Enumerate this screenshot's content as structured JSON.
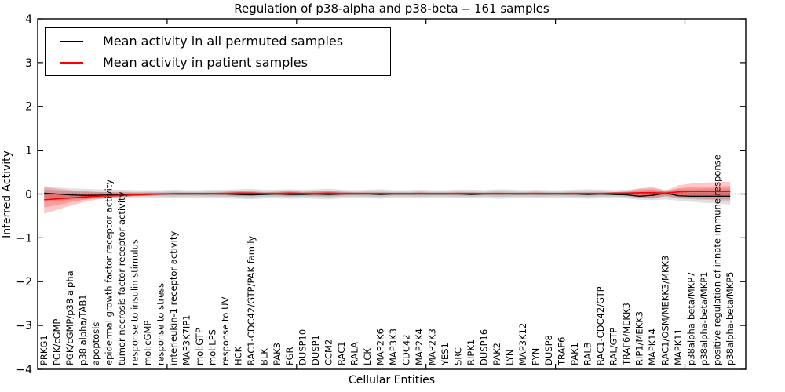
{
  "title": "Regulation of p38-alpha and p38-beta -- 161 samples",
  "ylabel": "Inferred Activity",
  "xlabel": "Cellular Entities",
  "legend": {
    "items": [
      {
        "label": "Mean activity in all permuted samples",
        "color": "#000000"
      },
      {
        "label": "Mean activity in patient samples",
        "color": "#ff0000"
      }
    ]
  },
  "chart_data": {
    "type": "line",
    "title": "Regulation of p38-alpha and p38-beta -- 161 samples",
    "xlabel": "Cellular Entities",
    "ylabel": "Inferred Activity",
    "ylim": [
      -4,
      4
    ],
    "xlim": [
      0,
      54.7
    ],
    "yticks": [
      -4,
      -3,
      -2,
      -1,
      0,
      1,
      2,
      3,
      4
    ],
    "ytick_labels": [
      "−4",
      "−3",
      "−2",
      "−1",
      "0",
      "1",
      "2",
      "3",
      "4"
    ],
    "xticks": [
      10,
      20,
      30,
      40,
      50
    ],
    "grid": false,
    "legend_position": "upper left",
    "zero_line": 0,
    "inner_band_fraction": 0.55,
    "categories": [
      "PRKG1",
      "PGK/cGMP",
      "PGK/cGMP/p38 alpha",
      "p38 alpha/TAB1",
      "apoptosis",
      "epidermal growth factor receptor activity",
      "tumor necrosis factor receptor activity",
      "response to insulin stimulus",
      "mol:cGMP",
      "response to stress",
      "interleukin-1 receptor activity",
      "MAP3K7IP1",
      "mol:GTP",
      "mol:LPS",
      "response to UV",
      "HCK",
      "RAC1-CDC42/GTP/PAK family",
      "BLK",
      "PAK3",
      "FGR",
      "DUSP10",
      "DUSP1",
      "CCM2",
      "RAC1",
      "RALA",
      "LCK",
      "MAP2K6",
      "MAP3K3",
      "CDC42",
      "MAP2K4",
      "MAP2K3",
      "YES1",
      "SRC",
      "RIPK1",
      "DUSP16",
      "PAK2",
      "LYN",
      "MAP3K12",
      "FYN",
      "DUSP8",
      "TRAF6",
      "PAK1",
      "RALB",
      "RAC1-CDC42/GTP",
      "RAL/GTP",
      "TRAF6/MEKK3",
      "RIP1/MEKK3",
      "MAPK14",
      "RAC1/OSM/MEKK3/MKK3",
      "MAPK11",
      "p38alpha-beta/MKP7",
      "p38alpha-beta/MKP1",
      "positive regulation of innate immune response",
      "p38alpha-beta/MKP5"
    ],
    "series": [
      {
        "name": "Mean activity in all permuted samples",
        "color": "#000000",
        "values": [
          0.02,
          0.0,
          -0.02,
          -0.03,
          -0.03,
          -0.02,
          -0.01,
          -0.01,
          0.0,
          0.0,
          0.0,
          0.0,
          0.0,
          0.0,
          0.0,
          -0.01,
          -0.02,
          -0.01,
          0.0,
          -0.01,
          -0.01,
          0.0,
          -0.01,
          0.0,
          0.0,
          0.0,
          -0.01,
          0.0,
          0.0,
          0.0,
          0.0,
          0.0,
          0.0,
          -0.01,
          0.0,
          0.0,
          0.0,
          0.0,
          0.0,
          0.0,
          0.0,
          0.0,
          -0.01,
          0.0,
          -0.01,
          -0.02,
          -0.05,
          -0.03,
          0.02,
          -0.04,
          -0.05,
          -0.05,
          -0.05,
          -0.05
        ]
      },
      {
        "name": "Mean activity in patient samples",
        "color": "#ff0000",
        "values": [
          -0.13,
          -0.11,
          -0.09,
          -0.07,
          -0.05,
          -0.04,
          -0.03,
          -0.02,
          -0.01,
          0.0,
          0.01,
          0.01,
          0.01,
          0.01,
          0.01,
          0.02,
          0.02,
          0.01,
          0.01,
          0.02,
          0.01,
          0.01,
          0.02,
          0.01,
          0.01,
          0.01,
          0.01,
          0.01,
          0.01,
          0.01,
          0.01,
          0.01,
          0.01,
          0.01,
          0.01,
          0.01,
          0.01,
          0.01,
          0.01,
          0.01,
          0.01,
          0.01,
          0.01,
          0.01,
          0.02,
          0.02,
          0.03,
          0.03,
          0.02,
          0.05,
          0.06,
          0.06,
          0.06,
          0.06
        ]
      }
    ],
    "bands": [
      {
        "name": "permuted-confidence-band",
        "color": "#000000",
        "opacity": 0.12,
        "upper": [
          0.18,
          0.15,
          0.13,
          0.12,
          0.11,
          0.1,
          0.1,
          0.09,
          0.09,
          0.09,
          0.1,
          0.09,
          0.09,
          0.1,
          0.1,
          0.11,
          0.12,
          0.1,
          0.1,
          0.11,
          0.1,
          0.11,
          0.12,
          0.1,
          0.09,
          0.1,
          0.11,
          0.09,
          0.09,
          0.1,
          0.09,
          0.09,
          0.1,
          0.1,
          0.09,
          0.11,
          0.1,
          0.09,
          0.1,
          0.09,
          0.09,
          0.1,
          0.11,
          0.1,
          0.09,
          0.1,
          0.12,
          0.13,
          0.1,
          0.11,
          0.11,
          0.12,
          0.12,
          0.12
        ],
        "lower": [
          -0.18,
          -0.15,
          -0.13,
          -0.12,
          -0.11,
          -0.1,
          -0.1,
          -0.09,
          -0.09,
          -0.09,
          -0.1,
          -0.09,
          -0.09,
          -0.1,
          -0.1,
          -0.11,
          -0.12,
          -0.1,
          -0.1,
          -0.11,
          -0.1,
          -0.11,
          -0.12,
          -0.1,
          -0.09,
          -0.1,
          -0.11,
          -0.09,
          -0.09,
          -0.1,
          -0.09,
          -0.09,
          -0.1,
          -0.1,
          -0.09,
          -0.11,
          -0.1,
          -0.09,
          -0.1,
          -0.09,
          -0.09,
          -0.1,
          -0.11,
          -0.1,
          -0.09,
          -0.1,
          -0.13,
          -0.14,
          -0.12,
          -0.15,
          -0.18,
          -0.2,
          -0.22,
          -0.24
        ]
      },
      {
        "name": "patient-confidence-band",
        "color": "#ff0000",
        "opacity": 0.22,
        "upper": [
          0.16,
          0.12,
          0.09,
          0.07,
          0.05,
          0.04,
          0.04,
          0.03,
          0.03,
          0.03,
          0.03,
          0.03,
          0.03,
          0.03,
          0.05,
          0.08,
          0.07,
          0.04,
          0.05,
          0.08,
          0.05,
          0.06,
          0.08,
          0.05,
          0.04,
          0.04,
          0.04,
          0.03,
          0.03,
          0.04,
          0.03,
          0.03,
          0.04,
          0.04,
          0.03,
          0.04,
          0.03,
          0.03,
          0.04,
          0.03,
          0.03,
          0.04,
          0.04,
          0.04,
          0.04,
          0.06,
          0.13,
          0.16,
          0.07,
          0.2,
          0.24,
          0.26,
          0.27,
          0.28
        ],
        "lower": [
          -0.45,
          -0.36,
          -0.27,
          -0.19,
          -0.13,
          -0.09,
          -0.07,
          -0.05,
          -0.04,
          -0.03,
          -0.02,
          -0.02,
          -0.02,
          -0.02,
          -0.03,
          -0.05,
          -0.04,
          -0.02,
          -0.03,
          -0.05,
          -0.03,
          -0.04,
          -0.05,
          -0.03,
          -0.02,
          -0.02,
          -0.02,
          -0.02,
          -0.02,
          -0.02,
          -0.02,
          -0.02,
          -0.02,
          -0.02,
          -0.02,
          -0.02,
          -0.02,
          -0.02,
          -0.02,
          -0.02,
          -0.02,
          -0.02,
          -0.02,
          -0.02,
          -0.02,
          -0.03,
          -0.08,
          -0.11,
          -0.04,
          -0.09,
          -0.1,
          -0.11,
          -0.12,
          -0.12
        ]
      }
    ]
  }
}
